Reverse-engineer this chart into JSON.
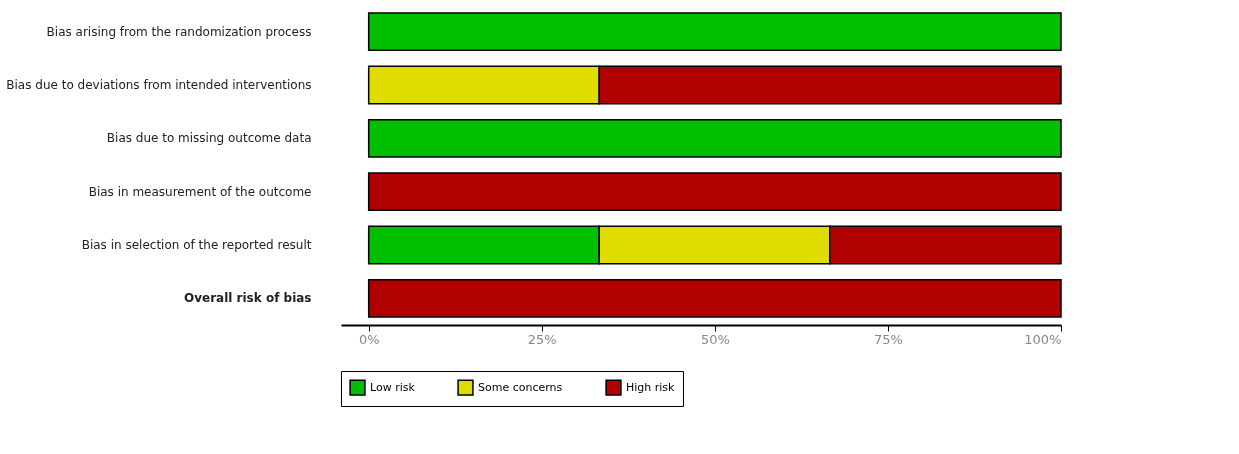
{
  "chart_data": {
    "type": "bar",
    "orientation": "horizontal",
    "stacked": true,
    "categories": [
      "Bias arising from the randomization process",
      "Bias due to deviations from intended interventions",
      "Bias due to missing outcome data",
      "Bias in measurement of the outcome",
      "Bias in selection of the reported result",
      "Overall risk of bias"
    ],
    "series": [
      {
        "name": "Low risk",
        "color": "#00bf00",
        "values": [
          100,
          null,
          100,
          null,
          33.3,
          null
        ]
      },
      {
        "name": "Some concerns",
        "color": "#e0dc00",
        "values": [
          null,
          33.3,
          null,
          null,
          33.3,
          null
        ]
      },
      {
        "name": "High risk",
        "color": "#b00000",
        "values": [
          null,
          66.7,
          null,
          100,
          33.4,
          100
        ]
      }
    ],
    "xlim": [
      -4,
      100
    ],
    "xticks": [
      {
        "value": 0,
        "label": "0%"
      },
      {
        "value": 25,
        "label": "25%"
      },
      {
        "value": 50,
        "label": "50%"
      },
      {
        "value": 75,
        "label": "75%"
      },
      {
        "value": 100,
        "label": "100%"
      }
    ],
    "grid": false,
    "legend": "bottom"
  }
}
